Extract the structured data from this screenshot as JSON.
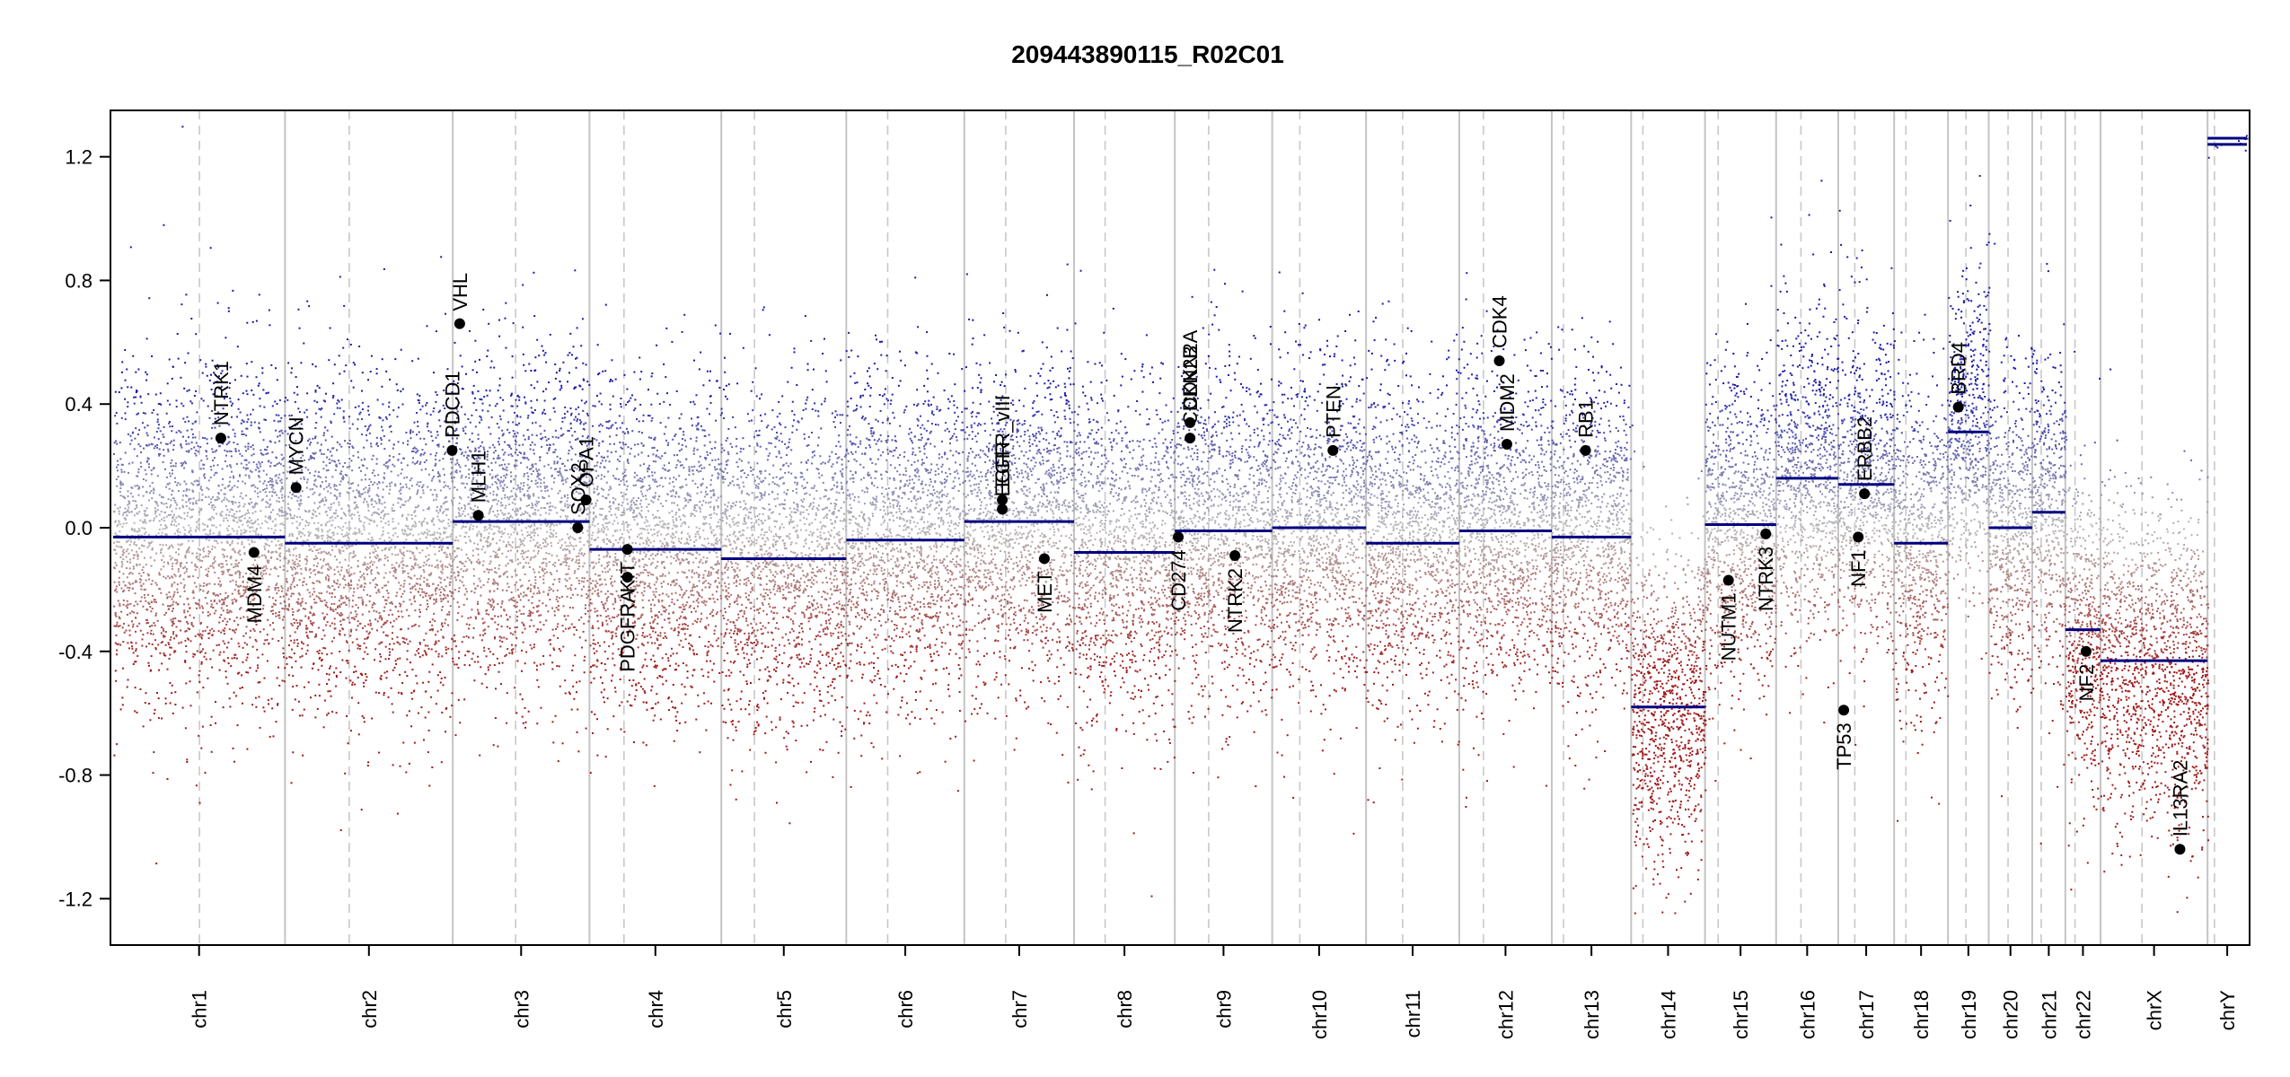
{
  "chart_data": {
    "type": "scatter",
    "title": "209443890115_R02C01",
    "xlabel": "",
    "ylabel": "",
    "ylim": [
      -1.35,
      1.35
    ],
    "y_ticks": [
      1.2,
      0.8,
      0.4,
      0.0,
      -0.4,
      -0.8,
      -1.2
    ],
    "y_tick_labels": [
      "1.2",
      "0.8",
      "0.4",
      "0.0",
      "-0.4",
      "-0.8",
      "-1.2"
    ],
    "grid": false,
    "point_colors": {
      "gain": "#1a1aa8",
      "neutral": "#b8b8b8",
      "loss": "#a01a1a"
    },
    "segment_color": "#000080",
    "chromosomes": [
      {
        "name": "chr1",
        "length": 249
      },
      {
        "name": "chr2",
        "length": 243
      },
      {
        "name": "chr3",
        "length": 198
      },
      {
        "name": "chr4",
        "length": 191
      },
      {
        "name": "chr5",
        "length": 181
      },
      {
        "name": "chr6",
        "length": 171
      },
      {
        "name": "chr7",
        "length": 159
      },
      {
        "name": "chr8",
        "length": 146
      },
      {
        "name": "chr9",
        "length": 141
      },
      {
        "name": "chr10",
        "length": 136
      },
      {
        "name": "chr11",
        "length": 135
      },
      {
        "name": "chr12",
        "length": 134
      },
      {
        "name": "chr13",
        "length": 115
      },
      {
        "name": "chr14",
        "length": 107
      },
      {
        "name": "chr15",
        "length": 103
      },
      {
        "name": "chr16",
        "length": 90
      },
      {
        "name": "chr17",
        "length": 81
      },
      {
        "name": "chr18",
        "length": 78
      },
      {
        "name": "chr19",
        "length": 59
      },
      {
        "name": "chr20",
        "length": 63
      },
      {
        "name": "chr21",
        "length": 48
      },
      {
        "name": "chr22",
        "length": 51
      },
      {
        "name": "chrX",
        "length": 155
      },
      {
        "name": "chrY",
        "length": 57
      }
    ],
    "centromeres": {
      "chr1": 125,
      "chr2": 93,
      "chr3": 91,
      "chr4": 50,
      "chr5": 48,
      "chr6": 60,
      "chr7": 60,
      "chr8": 45,
      "chr9": 49,
      "chr10": 40,
      "chr11": 53,
      "chr12": 35,
      "chr13": 17,
      "chr14": 17,
      "chr15": 19,
      "chr16": 36,
      "chr17": 24,
      "chr18": 17,
      "chr19": 26,
      "chr20": 28,
      "chr21": 13,
      "chr22": 14,
      "chrX": 60,
      "chrY": 10
    },
    "segments": [
      {
        "chr": "chr1",
        "start": 0,
        "end": 249,
        "value": -0.03
      },
      {
        "chr": "chr2",
        "start": 0,
        "end": 243,
        "value": -0.05
      },
      {
        "chr": "chr3",
        "start": 0,
        "end": 198,
        "value": 0.02
      },
      {
        "chr": "chr4",
        "start": 0,
        "end": 191,
        "value": -0.07
      },
      {
        "chr": "chr5",
        "start": 0,
        "end": 181,
        "value": -0.1
      },
      {
        "chr": "chr6",
        "start": 0,
        "end": 171,
        "value": -0.04
      },
      {
        "chr": "chr7",
        "start": 0,
        "end": 159,
        "value": 0.02
      },
      {
        "chr": "chr8",
        "start": 0,
        "end": 146,
        "value": -0.08
      },
      {
        "chr": "chr9",
        "start": 0,
        "end": 141,
        "value": -0.01
      },
      {
        "chr": "chr10",
        "start": 0,
        "end": 136,
        "value": 0.0
      },
      {
        "chr": "chr11",
        "start": 0,
        "end": 135,
        "value": -0.05
      },
      {
        "chr": "chr12",
        "start": 0,
        "end": 134,
        "value": -0.01
      },
      {
        "chr": "chr13",
        "start": 0,
        "end": 115,
        "value": -0.03
      },
      {
        "chr": "chr14",
        "start": 0,
        "end": 107,
        "value": -0.58
      },
      {
        "chr": "chr15",
        "start": 0,
        "end": 103,
        "value": 0.01
      },
      {
        "chr": "chr16",
        "start": 0,
        "end": 90,
        "value": 0.16
      },
      {
        "chr": "chr17",
        "start": 0,
        "end": 81,
        "value": 0.14
      },
      {
        "chr": "chr18",
        "start": 0,
        "end": 78,
        "value": -0.05
      },
      {
        "chr": "chr19",
        "start": 0,
        "end": 59,
        "value": 0.31
      },
      {
        "chr": "chr20",
        "start": 0,
        "end": 63,
        "value": 0.0
      },
      {
        "chr": "chr21",
        "start": 0,
        "end": 48,
        "value": 0.05
      },
      {
        "chr": "chr22",
        "start": 0,
        "end": 51,
        "value": -0.33
      },
      {
        "chr": "chrX",
        "start": 0,
        "end": 155,
        "value": -0.43
      },
      {
        "chr": "chrY",
        "start": 0,
        "end": 57,
        "value": 1.24
      },
      {
        "chr": "chrY",
        "start": 0,
        "end": 57,
        "value": 1.26
      }
    ],
    "genes": [
      {
        "name": "NTRK1",
        "chr": "chr1",
        "pos": 156,
        "value": 0.29,
        "label_side": "up"
      },
      {
        "name": "MDM4",
        "chr": "chr1",
        "pos": 204,
        "value": -0.08,
        "label_side": "down"
      },
      {
        "name": "MYCN",
        "chr": "chr2",
        "pos": 16,
        "value": 0.13,
        "label_side": "up"
      },
      {
        "name": "VHL",
        "chr": "chr3",
        "pos": 10,
        "value": 0.66,
        "label_side": "up"
      },
      {
        "name": "PDCD1",
        "chr": "chr2",
        "pos": 242,
        "value": 0.25,
        "label_side": "up"
      },
      {
        "name": "MLH1",
        "chr": "chr3",
        "pos": 37,
        "value": 0.04,
        "label_side": "up"
      },
      {
        "name": "SOX2",
        "chr": "chr3",
        "pos": 181,
        "value": 0.0,
        "label_side": "up"
      },
      {
        "name": "OPA1",
        "chr": "chr3",
        "pos": 193,
        "value": 0.09,
        "label_side": "up"
      },
      {
        "name": "PDGFRA",
        "chr": "chr4",
        "pos": 55,
        "value": -0.16,
        "label_side": "down"
      },
      {
        "name": "KIT",
        "chr": "chr4",
        "pos": 55,
        "value": -0.07,
        "label_side": "down"
      },
      {
        "name": "EGFR",
        "chr": "chr7",
        "pos": 55,
        "value": 0.06,
        "label_side": "up"
      },
      {
        "name": "EGFR_vIII",
        "chr": "chr7",
        "pos": 55,
        "value": 0.09,
        "label_side": "up"
      },
      {
        "name": "MET",
        "chr": "chr7",
        "pos": 116,
        "value": -0.1,
        "label_side": "down"
      },
      {
        "name": "CD274",
        "chr": "chr9",
        "pos": 5,
        "value": -0.03,
        "label_side": "down"
      },
      {
        "name": "CDKN2A",
        "chr": "chr9",
        "pos": 22,
        "value": 0.34,
        "label_side": "up"
      },
      {
        "name": "CDKN2B",
        "chr": "chr9",
        "pos": 22,
        "value": 0.29,
        "label_side": "up"
      },
      {
        "name": "NTRK2",
        "chr": "chr9",
        "pos": 87,
        "value": -0.09,
        "label_side": "down"
      },
      {
        "name": "PTEN",
        "chr": "chr10",
        "pos": 88,
        "value": 0.25,
        "label_side": "up"
      },
      {
        "name": "CDK4",
        "chr": "chr12",
        "pos": 58,
        "value": 0.54,
        "label_side": "up"
      },
      {
        "name": "MDM2",
        "chr": "chr12",
        "pos": 69,
        "value": 0.27,
        "label_side": "up"
      },
      {
        "name": "RB1",
        "chr": "chr13",
        "pos": 49,
        "value": 0.25,
        "label_side": "up"
      },
      {
        "name": "NUTM1",
        "chr": "chr15",
        "pos": 34,
        "value": -0.17,
        "label_side": "down"
      },
      {
        "name": "NTRK3",
        "chr": "chr15",
        "pos": 88,
        "value": -0.02,
        "label_side": "down"
      },
      {
        "name": "TP53",
        "chr": "chr17",
        "pos": 8,
        "value": -0.59,
        "label_side": "down"
      },
      {
        "name": "NF1",
        "chr": "chr17",
        "pos": 29,
        "value": -0.03,
        "label_side": "down"
      },
      {
        "name": "ERBB2",
        "chr": "chr17",
        "pos": 38,
        "value": 0.11,
        "label_side": "up"
      },
      {
        "name": "BRD4",
        "chr": "chr19",
        "pos": 15,
        "value": 0.39,
        "label_side": "up"
      },
      {
        "name": "NF2",
        "chr": "chr22",
        "pos": 30,
        "value": -0.4,
        "label_side": "down"
      },
      {
        "name": "IL13RA2",
        "chr": "chrX",
        "pos": 115,
        "value": -1.04,
        "label_side": "up"
      }
    ]
  }
}
